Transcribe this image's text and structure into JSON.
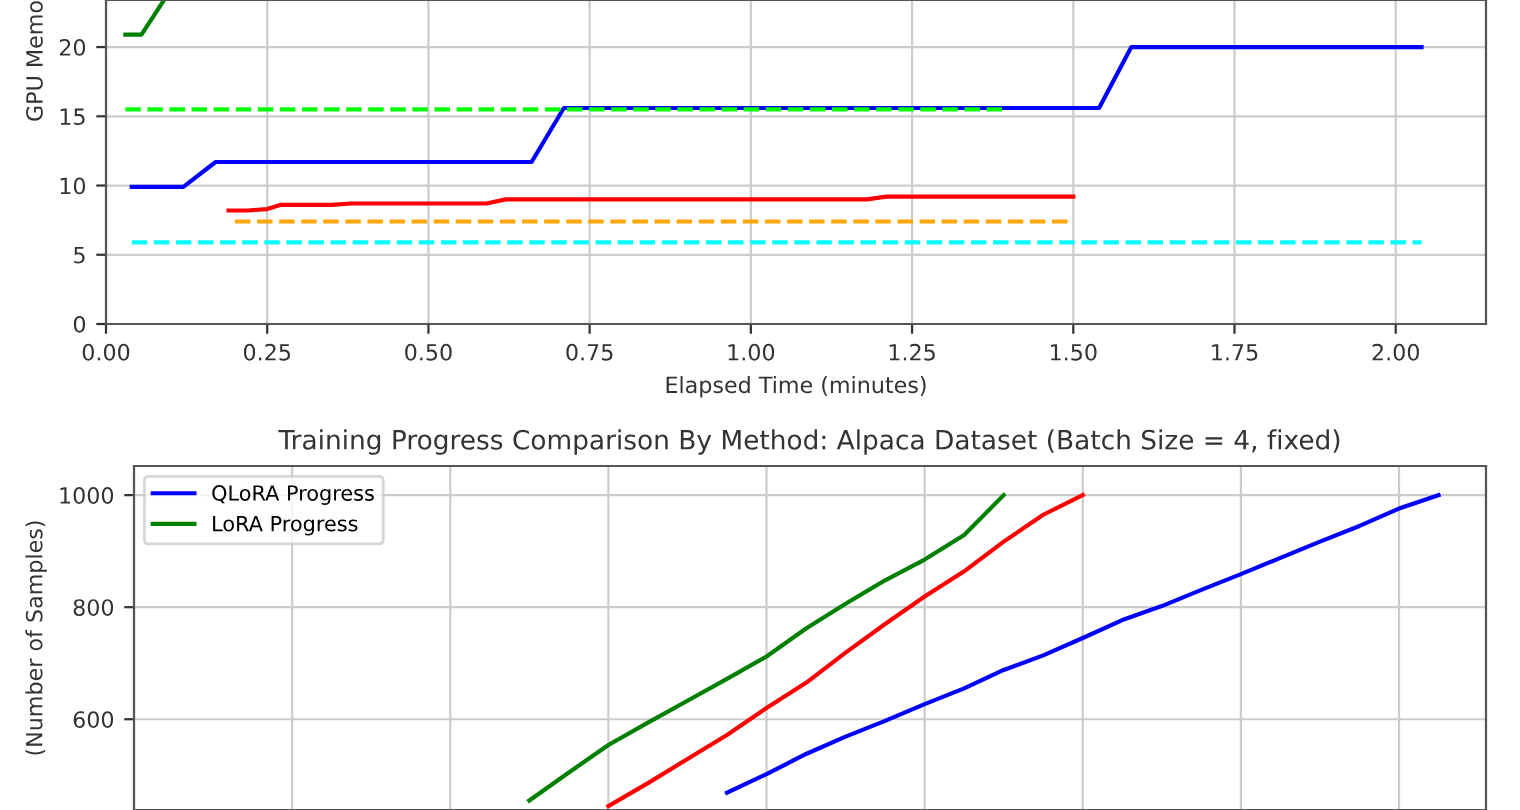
{
  "chart_data": [
    {
      "type": "line",
      "ylabel": "GPU Memo",
      "xlabel": "Elapsed Time (minutes)",
      "xlim": [
        0,
        2.14
      ],
      "ylim": [
        0,
        23.4
      ],
      "xticks": [
        {
          "value": 0,
          "label": "0.00"
        },
        {
          "value": 0.25,
          "label": "0.25"
        },
        {
          "value": 0.5,
          "label": "0.50"
        },
        {
          "value": 0.75,
          "label": "0.75"
        },
        {
          "value": 1,
          "label": "1.00"
        },
        {
          "value": 1.25,
          "label": "1.25"
        },
        {
          "value": 1.5,
          "label": "1.50"
        },
        {
          "value": 1.75,
          "label": "1.75"
        },
        {
          "value": 2,
          "label": "2.00"
        }
      ],
      "yticks": [
        0,
        5,
        10,
        15,
        20
      ],
      "grid": true,
      "legend": false,
      "series": [
        {
          "color": "#0000ff",
          "x": [
            0.04,
            0.12,
            0.17,
            0.66,
            0.71,
            1.54,
            1.59,
            2.04
          ],
          "values": [
            9.9,
            9.9,
            11.7,
            11.7,
            15.6,
            15.6,
            20,
            20
          ]
        },
        {
          "color": "#008000",
          "x": [
            0.03,
            0.055,
            0.09
          ],
          "values": [
            20.9,
            20.9,
            23.4
          ]
        },
        {
          "color": "#ff0000",
          "x": [
            0.19,
            0.22,
            0.25,
            0.27,
            0.35,
            0.38,
            0.59,
            0.62,
            1.18,
            1.21,
            1.5
          ],
          "values": [
            8.2,
            8.2,
            8.3,
            8.6,
            8.6,
            8.7,
            8.7,
            9.0,
            9.0,
            9.2,
            9.2
          ]
        },
        {
          "color": "#00ff00",
          "line_style": "dashed",
          "x": [
            0.03,
            1.4
          ],
          "values": [
            15.5,
            15.5
          ]
        },
        {
          "color": "#ffa500",
          "line_style": "dashed",
          "x": [
            0.2,
            1.5
          ],
          "values": [
            7.4,
            7.4
          ]
        },
        {
          "color": "#00ffff",
          "line_style": "dashed",
          "x": [
            0.04,
            2.04
          ],
          "values": [
            5.9,
            5.9
          ]
        }
      ]
    },
    {
      "type": "line",
      "title": "Training Progress Comparison By Method: Alpaca Dataset (Batch Size = 4, fixed)",
      "ylabel": "(Number of Samples)",
      "categories": [
        null,
        null,
        null,
        null,
        null,
        null,
        null,
        null,
        null,
        null,
        null,
        null,
        null,
        null,
        null,
        null,
        null,
        null,
        null,
        null,
        null,
        null,
        null,
        null,
        null,
        null,
        null,
        null,
        null,
        null,
        null,
        null,
        null,
        null,
        null
      ],
      "ylim": [
        438,
        1052
      ],
      "yticks": [
        600,
        800,
        1000
      ],
      "grid": true,
      "legend": "top left",
      "tick_labels": "y",
      "series": [
        {
          "name": "QLoRA Progress",
          "color": "#0000ff",
          "values": [
            null,
            null,
            null,
            null,
            null,
            null,
            null,
            null,
            null,
            null,
            null,
            null,
            null,
            null,
            null,
            469,
            502,
            538,
            569,
            597,
            627,
            655,
            688,
            714,
            745,
            777,
            802,
            831,
            859,
            888,
            917,
            945,
            976,
            1000,
            null
          ]
        },
        {
          "name": "LoRA Progress",
          "color": "#008000",
          "values": [
            null,
            null,
            null,
            null,
            null,
            null,
            null,
            null,
            null,
            null,
            455,
            505,
            554,
            594,
            633,
            672,
            712,
            762,
            806,
            848,
            885,
            929,
            1000,
            null,
            null,
            null,
            null,
            null,
            null,
            null,
            null,
            null,
            null,
            null,
            null
          ]
        },
        {
          "color": "#ff0000",
          "values": [
            null,
            null,
            null,
            null,
            null,
            null,
            null,
            null,
            null,
            null,
            null,
            null,
            445,
            486,
            529,
            572,
            620,
            665,
            719,
            770,
            819,
            864,
            917,
            965,
            1000,
            null,
            null,
            null,
            null,
            null,
            null,
            null,
            null,
            null,
            null
          ]
        }
      ]
    }
  ]
}
